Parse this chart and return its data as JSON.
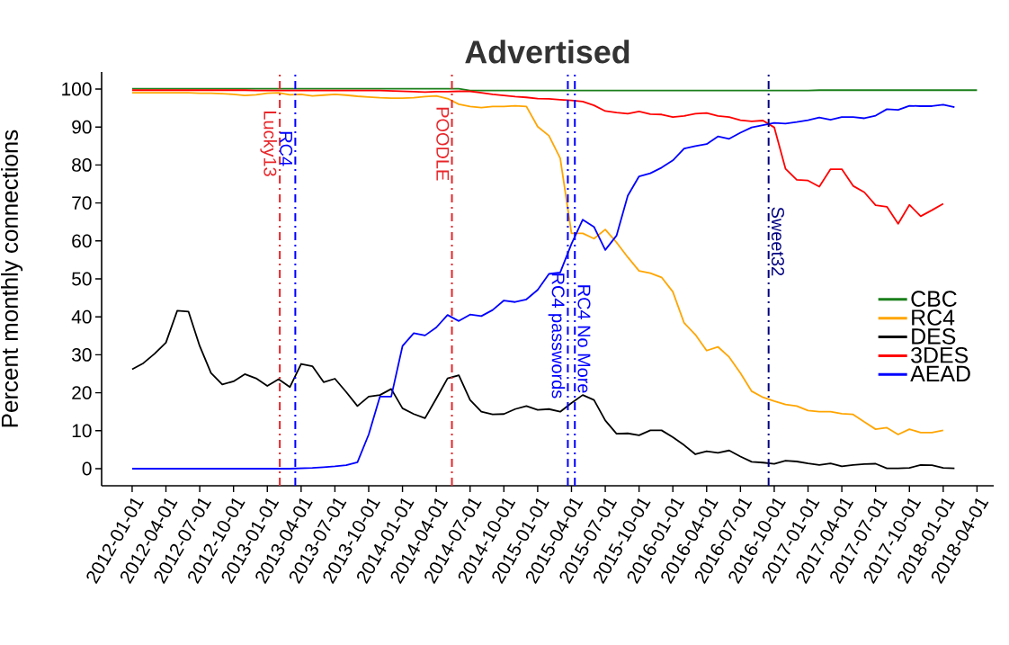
{
  "chart_data": {
    "type": "line",
    "title": "Advertised",
    "ylabel": "Percent monthly connections",
    "x": [
      "2012-01",
      "2012-02",
      "2012-03",
      "2012-04",
      "2012-05",
      "2012-06",
      "2012-07",
      "2012-08",
      "2012-09",
      "2012-10",
      "2012-11",
      "2012-12",
      "2013-01",
      "2013-02",
      "2013-03",
      "2013-04",
      "2013-05",
      "2013-06",
      "2013-07",
      "2013-08",
      "2013-09",
      "2013-10",
      "2013-11",
      "2013-12",
      "2014-01",
      "2014-02",
      "2014-03",
      "2014-04",
      "2014-05",
      "2014-06",
      "2014-07",
      "2014-08",
      "2014-09",
      "2014-10",
      "2014-11",
      "2014-12",
      "2015-01",
      "2015-02",
      "2015-03",
      "2015-04",
      "2015-05",
      "2015-06",
      "2015-07",
      "2015-08",
      "2015-09",
      "2015-10",
      "2015-11",
      "2015-12",
      "2016-01",
      "2016-02",
      "2016-03",
      "2016-04",
      "2016-05",
      "2016-06",
      "2016-07",
      "2016-08",
      "2016-09",
      "2016-10",
      "2016-11",
      "2016-12",
      "2017-01",
      "2017-02",
      "2017-03",
      "2017-04",
      "2017-05",
      "2017-06",
      "2017-07",
      "2017-08",
      "2017-09",
      "2017-10",
      "2017-11",
      "2017-12",
      "2018-01",
      "2018-02",
      "2018-03",
      "2018-04"
    ],
    "series": [
      {
        "name": "CBC",
        "color": "#1a7f1a",
        "values": [
          100.1,
          100.1,
          100.1,
          100.1,
          100.1,
          100.1,
          100.1,
          100.1,
          100.1,
          100.1,
          100.1,
          100.1,
          100.1,
          100.1,
          100.1,
          100.1,
          100.1,
          100.1,
          100.1,
          100.1,
          100.1,
          100.1,
          100.1,
          100.1,
          100.1,
          100.1,
          100.1,
          100.1,
          100.1,
          100.1,
          99.6,
          99.6,
          99.6,
          99.6,
          99.6,
          99.6,
          99.6,
          99.6,
          99.6,
          99.6,
          99.6,
          99.6,
          99.6,
          99.6,
          99.6,
          99.6,
          99.6,
          99.6,
          99.6,
          99.6,
          99.6,
          99.6,
          99.6,
          99.6,
          99.6,
          99.6,
          99.6,
          99.6,
          99.6,
          99.6,
          99.6,
          99.7,
          99.7,
          99.7,
          99.7,
          99.7,
          99.7,
          99.7,
          99.7,
          99.7,
          99.7,
          99.7,
          99.7,
          99.7,
          99.7,
          99.7
        ]
      },
      {
        "name": "RC4",
        "color": "#ffa500",
        "values": [
          99.0,
          99.0,
          99.0,
          99.0,
          99.0,
          99.0,
          98.9,
          98.9,
          98.8,
          98.6,
          98.3,
          98.5,
          98.9,
          99.0,
          98.5,
          98.6,
          98.2,
          98.4,
          98.6,
          98.4,
          98.1,
          97.9,
          97.7,
          97.6,
          97.6,
          97.7,
          98.0,
          98.2,
          97.5,
          96.0,
          95.4,
          95.1,
          95.4,
          95.4,
          95.6,
          95.4,
          90.1,
          87.7,
          81.8,
          62.0,
          62.0,
          60.6,
          63.0,
          59.6,
          55.7,
          52.1,
          51.5,
          50.4,
          46.6,
          38.4,
          35.3,
          31.1,
          32.1,
          29.4,
          25.2,
          20.4,
          18.8,
          17.8,
          16.9,
          16.5,
          15.3,
          15.0,
          15.0,
          14.5,
          14.3,
          12.3,
          10.4,
          10.8,
          9.0,
          10.4,
          9.5,
          9.5,
          10.1,
          null,
          null,
          null
        ]
      },
      {
        "name": "DES",
        "color": "#000000",
        "values": [
          26.2,
          27.8,
          30.3,
          33.2,
          41.6,
          41.4,
          32.3,
          25.2,
          22.2,
          23.0,
          24.9,
          23.8,
          21.8,
          23.6,
          21.5,
          27.6,
          27.0,
          22.8,
          23.7,
          20.2,
          16.5,
          19.0,
          19.4,
          21.0,
          15.9,
          14.4,
          13.3,
          18.5,
          23.8,
          24.6,
          18.1,
          15.0,
          14.3,
          14.4,
          15.7,
          16.5,
          15.5,
          15.7,
          15.0,
          17.3,
          19.4,
          18.1,
          12.7,
          9.2,
          9.3,
          8.8,
          10.1,
          10.1,
          8.3,
          6.2,
          3.8,
          4.6,
          4.2,
          4.8,
          3.2,
          1.8,
          1.6,
          1.3,
          2.1,
          1.9,
          1.4,
          1.0,
          1.4,
          0.6,
          1.0,
          1.2,
          1.3,
          0.1,
          0.1,
          0.2,
          1.0,
          0.9,
          0.2,
          0.1,
          null,
          null
        ]
      },
      {
        "name": "3DES",
        "color": "#ff0000",
        "values": [
          99.7,
          99.7,
          99.7,
          99.7,
          99.7,
          99.7,
          99.7,
          99.7,
          99.7,
          99.7,
          99.7,
          99.6,
          99.6,
          99.6,
          99.6,
          99.6,
          99.6,
          99.6,
          99.6,
          99.6,
          99.6,
          99.6,
          99.6,
          99.5,
          99.4,
          99.3,
          99.2,
          99.3,
          99.3,
          99.4,
          99.4,
          99.0,
          98.6,
          98.3,
          98.0,
          97.8,
          97.5,
          97.4,
          97.2,
          97.0,
          96.7,
          95.7,
          94.2,
          93.8,
          93.5,
          94.1,
          93.4,
          93.3,
          92.6,
          92.9,
          93.5,
          93.7,
          92.9,
          92.6,
          91.8,
          91.5,
          91.7,
          89.9,
          79.0,
          76.1,
          75.9,
          74.3,
          78.9,
          78.9,
          74.5,
          72.8,
          69.4,
          69.0,
          64.5,
          69.5,
          66.5,
          68.1,
          69.8,
          null,
          null,
          null
        ]
      },
      {
        "name": "AEAD",
        "color": "#0000ff",
        "values": [
          0,
          0,
          0,
          0,
          0,
          0,
          0,
          0,
          0,
          0,
          0,
          0,
          0,
          0,
          0,
          0.1,
          0.2,
          0.4,
          0.6,
          0.9,
          1.7,
          9.0,
          19.0,
          19.0,
          32.3,
          35.7,
          35.1,
          37.2,
          40.5,
          38.9,
          40.6,
          40.2,
          41.8,
          44.3,
          43.9,
          44.6,
          47.1,
          51.3,
          51.7,
          59.2,
          65.6,
          63.7,
          57.6,
          61.4,
          71.9,
          77.0,
          77.8,
          79.3,
          81.2,
          84.3,
          85.0,
          85.5,
          87.5,
          86.9,
          88.5,
          89.9,
          90.5,
          91.1,
          90.9,
          91.3,
          91.8,
          92.5,
          91.9,
          92.6,
          92.6,
          92.3,
          93.0,
          94.7,
          94.5,
          95.6,
          95.5,
          95.5,
          95.9,
          95.2,
          null,
          null
        ]
      }
    ],
    "xlim": [
      "2011-10-10",
      "2018-05-16"
    ],
    "ylim": [
      -4.5,
      104.5
    ],
    "xticks": [
      "2012-01-01",
      "2012-04-01",
      "2012-07-01",
      "2012-10-01",
      "2013-01-01",
      "2013-04-01",
      "2013-07-01",
      "2013-10-01",
      "2014-01-01",
      "2014-04-01",
      "2014-07-01",
      "2014-10-01",
      "2015-01-01",
      "2015-04-01",
      "2015-07-01",
      "2015-10-01",
      "2016-01-01",
      "2016-04-01",
      "2016-07-01",
      "2016-10-01",
      "2017-01-01",
      "2017-04-01",
      "2017-07-01",
      "2017-10-01",
      "2018-01-01",
      "2018-04-01"
    ],
    "yticks": [
      0,
      10,
      20,
      30,
      40,
      50,
      60,
      70,
      80,
      90,
      100
    ],
    "ref_lines": [
      {
        "axis": "x",
        "value": "2013-02-04",
        "label": "Lucky13",
        "color": "#e8262a",
        "line_style": "dashdot"
      },
      {
        "axis": "x",
        "value": "2013-03-16",
        "label": "RC4",
        "color": "#0000ff",
        "line_style": "dashdot"
      },
      {
        "axis": "x",
        "value": "2014-05-13",
        "label": "POODLE",
        "color": "#e8262a",
        "line_style": "dashdot"
      },
      {
        "axis": "x",
        "value": "2015-03-22",
        "label": "RC4 passwords",
        "color": "#0000ff",
        "line_style": "dashdot"
      },
      {
        "axis": "x",
        "value": "2015-04-10",
        "label": "RC4 No More",
        "color": "#0000ff",
        "line_style": "dashdot"
      },
      {
        "axis": "x",
        "value": "2016-09-16",
        "label": "Sweet32",
        "color": "#000080",
        "line_style": "dashdot"
      }
    ],
    "legend": "right",
    "grid": false,
    "marker": "none",
    "line_style": "solid"
  }
}
